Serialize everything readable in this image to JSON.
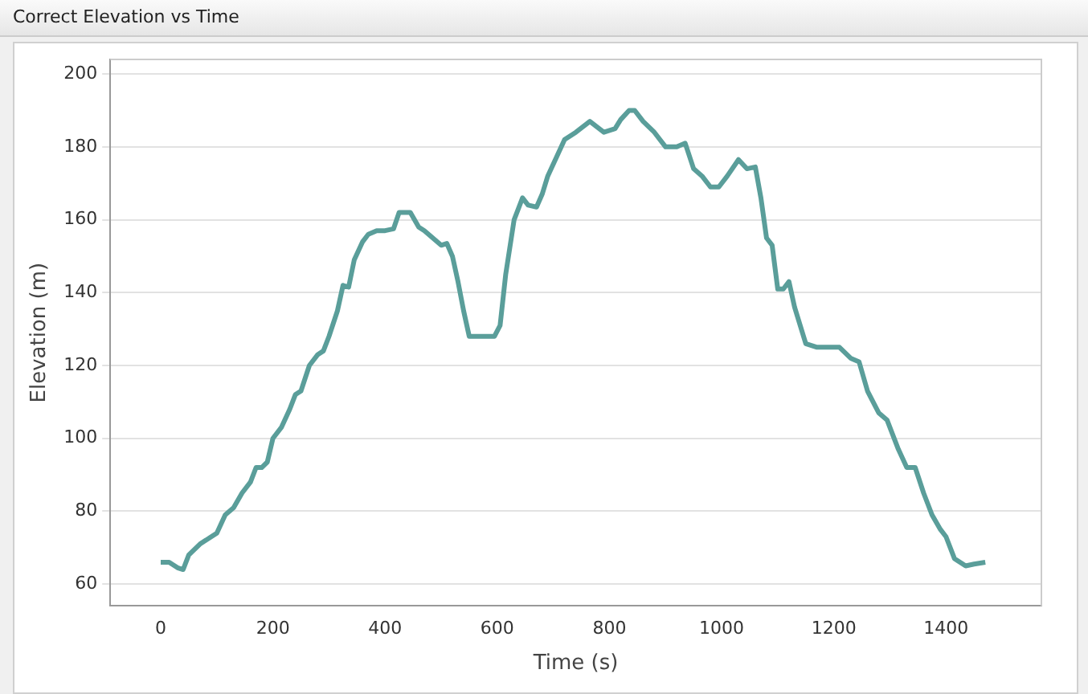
{
  "chart_data": {
    "type": "line",
    "title": "Correct Elevation vs Time",
    "xlabel": "Time (s)",
    "ylabel": "Elevation (m)",
    "x": [
      0,
      15,
      30,
      40,
      50,
      70,
      90,
      100,
      115,
      130,
      145,
      160,
      170,
      180,
      190,
      200,
      215,
      230,
      240,
      250,
      265,
      280,
      290,
      300,
      315,
      325,
      335,
      345,
      360,
      370,
      385,
      400,
      415,
      425,
      445,
      460,
      470,
      485,
      500,
      510,
      520,
      530,
      540,
      550,
      570,
      595,
      605,
      615,
      630,
      645,
      655,
      670,
      680,
      690,
      705,
      720,
      740,
      765,
      790,
      810,
      820,
      835,
      845,
      860,
      880,
      900,
      920,
      935,
      950,
      965,
      980,
      995,
      1010,
      1030,
      1045,
      1060,
      1070,
      1080,
      1090,
      1100,
      1110,
      1120,
      1130,
      1150,
      1170,
      1210,
      1230,
      1245,
      1260,
      1280,
      1295,
      1315,
      1330,
      1345,
      1360,
      1375,
      1390,
      1400,
      1415,
      1435,
      1450,
      1470
    ],
    "series": [
      {
        "color": "#5a9e9a",
        "values": [
          66,
          66,
          64.5,
          64,
          68,
          71,
          73,
          74,
          79,
          81,
          85,
          88,
          92,
          92,
          93.5,
          100,
          103,
          108,
          112,
          113,
          120,
          123,
          124,
          128,
          135,
          142,
          141.5,
          149,
          154,
          156,
          157,
          157,
          157.5,
          162,
          162,
          158,
          157,
          155,
          153,
          153.5,
          150,
          143,
          135,
          128,
          128,
          128,
          131,
          145,
          160,
          166,
          164,
          163.5,
          167,
          172,
          177,
          182,
          184,
          187,
          184,
          185,
          187.5,
          190,
          190,
          187,
          184,
          180,
          180,
          181,
          174,
          172,
          169,
          169,
          172,
          176.5,
          174,
          174.5,
          166,
          155,
          153,
          141,
          141,
          143,
          136,
          126,
          125,
          125,
          122,
          121,
          113,
          107,
          105,
          97,
          92,
          92,
          85,
          79,
          75,
          73,
          67,
          65,
          65.5,
          66
        ]
      }
    ],
    "xlim": [
      -90,
      1570
    ],
    "ylim": [
      54,
      204
    ],
    "xticks": [
      0,
      200,
      400,
      600,
      800,
      1000,
      1200,
      1400
    ],
    "yticks": [
      60,
      80,
      100,
      120,
      140,
      160,
      180,
      200
    ],
    "grid": "y",
    "marker": "none",
    "line_style": "solid"
  }
}
